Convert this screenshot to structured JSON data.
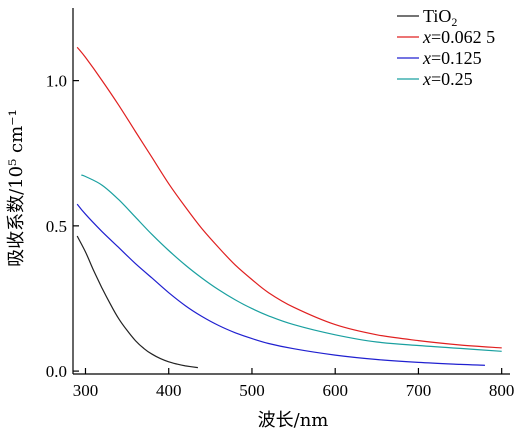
{
  "chart_data": {
    "type": "line",
    "xlabel": "波长/nm",
    "ylabel": "吸收系数/10⁵ cm⁻¹",
    "xlim": [
      285,
      810
    ],
    "ylim": [
      -0.01,
      1.25
    ],
    "x_ticks": [
      300,
      400,
      500,
      600,
      700,
      800
    ],
    "x_tick_labels": [
      "300",
      "400",
      "500",
      "600",
      "700",
      "800"
    ],
    "y_ticks": [
      0.0,
      0.5,
      1.0
    ],
    "y_tick_labels": [
      "0.0",
      "0.5",
      "1.0"
    ],
    "grid": false,
    "legend_position": "top-right",
    "series": [
      {
        "name": "TiO",
        "name_subscript": "2",
        "color": "#222222",
        "x": [
          290,
          300,
          310,
          320,
          330,
          340,
          350,
          360,
          370,
          380,
          390,
          400,
          410,
          420,
          435
        ],
        "y": [
          0.465,
          0.41,
          0.345,
          0.285,
          0.23,
          0.18,
          0.14,
          0.105,
          0.078,
          0.058,
          0.043,
          0.032,
          0.024,
          0.018,
          0.012
        ]
      },
      {
        "name_prefix": "x",
        "name": "=0.062 5",
        "color": "#e02020",
        "x": [
          290,
          300,
          320,
          340,
          360,
          380,
          400,
          420,
          440,
          460,
          480,
          500,
          520,
          550,
          600,
          650,
          700,
          750,
          800
        ],
        "y": [
          1.115,
          1.08,
          1.0,
          0.915,
          0.825,
          0.735,
          0.645,
          0.565,
          0.49,
          0.425,
          0.365,
          0.315,
          0.27,
          0.22,
          0.16,
          0.125,
          0.105,
          0.09,
          0.08
        ]
      },
      {
        "name_prefix": "x",
        "name": "=0.125",
        "color": "#2020d0",
        "x": [
          290,
          300,
          320,
          340,
          360,
          380,
          400,
          420,
          440,
          460,
          480,
          500,
          520,
          550,
          600,
          650,
          700,
          750,
          780
        ],
        "y": [
          0.575,
          0.54,
          0.48,
          0.425,
          0.37,
          0.32,
          0.27,
          0.225,
          0.188,
          0.157,
          0.132,
          0.112,
          0.095,
          0.077,
          0.055,
          0.04,
          0.03,
          0.023,
          0.02
        ]
      },
      {
        "name_prefix": "x",
        "name": "=0.25",
        "color": "#1aa0a0",
        "x": [
          295,
          300,
          320,
          340,
          360,
          380,
          400,
          420,
          440,
          460,
          480,
          500,
          520,
          550,
          600,
          650,
          700,
          750,
          800
        ],
        "y": [
          0.675,
          0.67,
          0.64,
          0.59,
          0.53,
          0.47,
          0.415,
          0.365,
          0.32,
          0.28,
          0.245,
          0.215,
          0.19,
          0.16,
          0.125,
          0.1,
          0.088,
          0.078,
          0.068
        ]
      }
    ]
  }
}
